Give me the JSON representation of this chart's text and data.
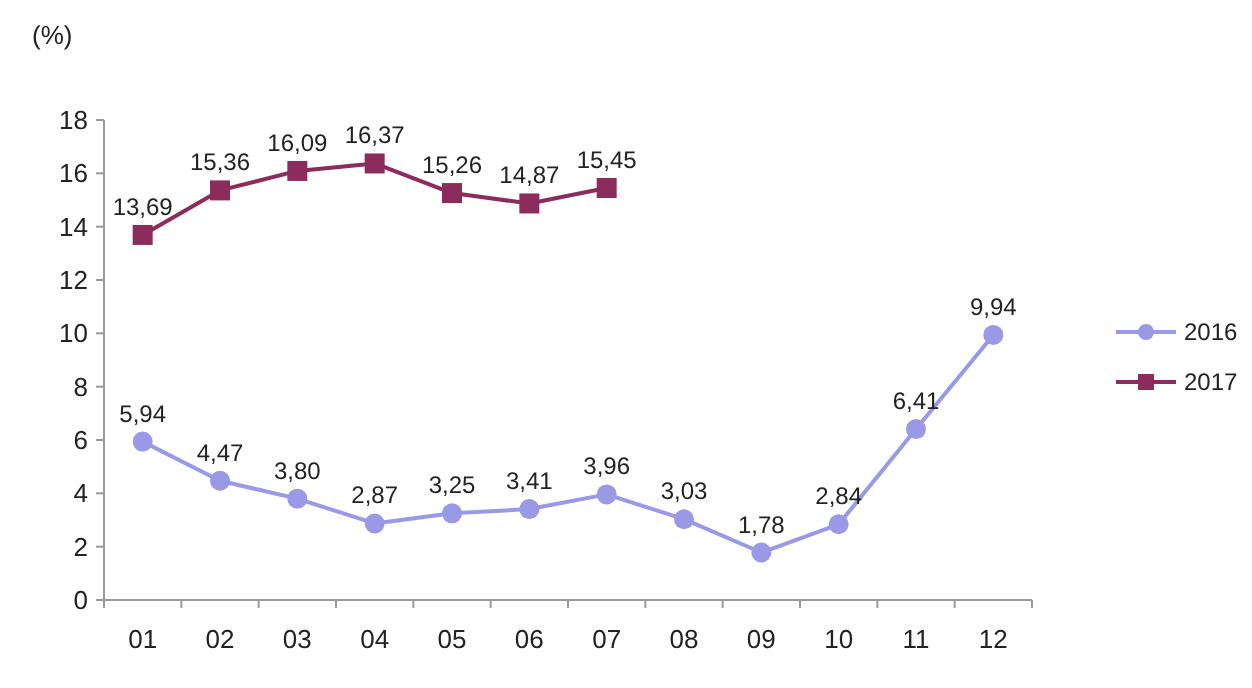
{
  "chart_data": {
    "type": "line",
    "ylabel": "(%)",
    "categories": [
      "01",
      "02",
      "03",
      "04",
      "05",
      "06",
      "07",
      "08",
      "09",
      "10",
      "11",
      "12"
    ],
    "series": [
      {
        "name": "2016",
        "color": "#9999e6",
        "marker": "circle",
        "values": [
          5.94,
          4.47,
          3.8,
          2.87,
          3.25,
          3.41,
          3.96,
          3.03,
          1.78,
          2.84,
          6.41,
          9.94
        ],
        "value_labels": [
          "5,94",
          "4,47",
          "3,80",
          "2,87",
          "3,25",
          "3,41",
          "3,96",
          "3,03",
          "1,78",
          "2,84",
          "6,41",
          "9,94"
        ]
      },
      {
        "name": "2017",
        "color": "#8b2c5c",
        "marker": "square",
        "values": [
          13.69,
          15.36,
          16.09,
          16.37,
          15.26,
          14.87,
          15.45,
          null,
          null,
          null,
          null,
          null
        ],
        "value_labels": [
          "13,69",
          "15,36",
          "16,09",
          "16,37",
          "15,26",
          "14,87",
          "15,45",
          null,
          null,
          null,
          null,
          null
        ]
      }
    ],
    "ylim": [
      0,
      18
    ],
    "yticks": [
      0,
      2,
      4,
      6,
      8,
      10,
      12,
      14,
      16,
      18
    ],
    "grid": false,
    "legend": "right",
    "line_style": "solid"
  }
}
